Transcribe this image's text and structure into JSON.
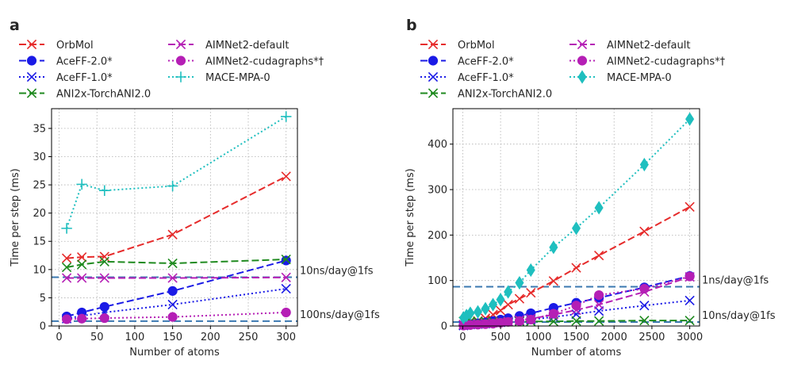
{
  "chart_data": [
    {
      "type": "line",
      "panel_label": "a",
      "title": "",
      "xlabel": "Number of atoms",
      "ylabel": "Time per step (ms)",
      "xlim": [
        -10,
        315
      ],
      "ylim": [
        0,
        38.5
      ],
      "xticks": [
        0,
        50,
        100,
        150,
        200,
        250,
        300
      ],
      "yticks": [
        0,
        5,
        10,
        15,
        20,
        25,
        30,
        35
      ],
      "xtick_labels": [
        "0",
        "50",
        "100",
        "150",
        "200",
        "250",
        "300"
      ],
      "ytick_labels": [
        "0",
        "5",
        "10",
        "15",
        "20",
        "25",
        "30",
        "35"
      ],
      "grid": true,
      "legend_position": "top",
      "series": [
        {
          "name": "OrbMol",
          "color": "#e62b2b",
          "linestyle": "dashed",
          "marker": "x",
          "x": [
            10,
            30,
            60,
            150,
            300
          ],
          "y": [
            12.0,
            12.2,
            12.3,
            16.2,
            26.5
          ]
        },
        {
          "name": "AceFF-2.0*",
          "color": "#1a1ae6",
          "linestyle": "dashed",
          "marker": "circle",
          "x": [
            10,
            30,
            60,
            150,
            300
          ],
          "y": [
            1.7,
            2.4,
            3.4,
            6.2,
            11.6
          ]
        },
        {
          "name": "AceFF-1.0*",
          "color": "#1a1ae6",
          "linestyle": "dotted",
          "marker": "x",
          "x": [
            10,
            30,
            60,
            150,
            300
          ],
          "y": [
            1.3,
            1.8,
            2.4,
            3.8,
            6.6
          ]
        },
        {
          "name": "ANI2x-TorchANI2.0",
          "color": "#1f8a1f",
          "linestyle": "dashed",
          "marker": "x",
          "x": [
            10,
            30,
            60,
            150,
            300
          ],
          "y": [
            10.4,
            10.9,
            11.4,
            11.1,
            11.8
          ]
        },
        {
          "name": "AIMNet2-default",
          "color": "#b51fb5",
          "linestyle": "dashed",
          "marker": "x",
          "x": [
            10,
            30,
            60,
            150,
            300
          ],
          "y": [
            8.5,
            8.5,
            8.5,
            8.5,
            8.6
          ]
        },
        {
          "name": "AIMNet2-cudagraphs*†",
          "color": "#b51fb5",
          "linestyle": "dotted",
          "marker": "circle",
          "x": [
            10,
            30,
            60,
            150,
            300
          ],
          "y": [
            1.2,
            1.3,
            1.4,
            1.6,
            2.4
          ]
        },
        {
          "name": "MACE-MPA-0",
          "color": "#1fbfbf",
          "linestyle": "dotted",
          "marker": "plus",
          "x": [
            10,
            30,
            60,
            150,
            300
          ],
          "y": [
            17.3,
            25.1,
            24.0,
            24.8,
            37.1
          ]
        }
      ],
      "reference_lines": [
        {
          "label": "10ns/day@1fs",
          "y": 8.64
        },
        {
          "label": "100ns/day@1fs",
          "y": 0.864
        }
      ]
    },
    {
      "type": "line",
      "panel_label": "b",
      "title": "",
      "xlabel": "Number of atoms",
      "ylabel": "Time per step (ms)",
      "xlim": [
        -130,
        3130
      ],
      "ylim": [
        0,
        478
      ],
      "xticks": [
        0,
        500,
        1000,
        1500,
        2000,
        2500,
        3000
      ],
      "yticks": [
        0,
        100,
        200,
        300,
        400
      ],
      "xtick_labels": [
        "0",
        "500",
        "1000",
        "1500",
        "2000",
        "2500",
        "3000"
      ],
      "ytick_labels": [
        "0",
        "100",
        "200",
        "300",
        "400"
      ],
      "grid": true,
      "legend_position": "top",
      "series": [
        {
          "name": "OrbMol",
          "color": "#e62b2b",
          "linestyle": "dashed",
          "marker": "x",
          "x": [
            10,
            50,
            100,
            200,
            300,
            400,
            500,
            600,
            750,
            900,
            1200,
            1500,
            1800,
            2400,
            3000
          ],
          "y": [
            3,
            5,
            7,
            11,
            17,
            25,
            34,
            47,
            60,
            73,
            99,
            128,
            155,
            208,
            262
          ]
        },
        {
          "name": "AceFF-2.0*",
          "color": "#1a1ae6",
          "linestyle": "dashed",
          "marker": "circle",
          "x": [
            10,
            50,
            100,
            200,
            300,
            400,
            500,
            600,
            750,
            900,
            1200,
            1500,
            1800,
            2400,
            3000
          ],
          "y": [
            2,
            3,
            4,
            6,
            8,
            11,
            14,
            17,
            22,
            28,
            40,
            51,
            62,
            85,
            110
          ]
        },
        {
          "name": "AceFF-1.0*",
          "color": "#1a1ae6",
          "linestyle": "dotted",
          "marker": "x",
          "x": [
            10,
            50,
            100,
            200,
            300,
            400,
            500,
            600,
            750,
            900,
            1200,
            1500,
            1800,
            2400,
            3000
          ],
          "y": [
            1,
            2,
            3,
            4,
            5,
            7,
            8,
            10,
            12,
            14,
            20,
            26,
            33,
            45,
            56
          ]
        },
        {
          "name": "ANI2x-TorchANI2.0",
          "color": "#1f8a1f",
          "linestyle": "dashed",
          "marker": "x",
          "x": [
            10,
            50,
            100,
            200,
            300,
            400,
            500,
            600,
            750,
            900,
            1200,
            1500,
            1800,
            2400,
            3000
          ],
          "y": [
            10,
            10,
            10,
            10,
            10,
            10,
            10,
            10,
            10,
            10,
            10,
            11,
            11,
            12,
            12
          ]
        },
        {
          "name": "AIMNet2-default",
          "color": "#b51fb5",
          "linestyle": "dashed",
          "marker": "x",
          "x": [
            10,
            50,
            100,
            200,
            300,
            400,
            500,
            600,
            750,
            900,
            1200,
            1500,
            1800,
            2400,
            3000
          ],
          "y": [
            3,
            3,
            4,
            5,
            6,
            7,
            9,
            10,
            13,
            16,
            25,
            35,
            47,
            75,
            108
          ]
        },
        {
          "name": "AIMNet2-cudagraphs*†",
          "color": "#b51fb5",
          "linestyle": "dotted",
          "marker": "circle",
          "x": [
            10,
            50,
            100,
            200,
            300,
            400,
            500,
            600,
            750,
            900,
            1200,
            1500,
            1800,
            2400,
            3000
          ],
          "y": [
            1,
            2,
            2,
            3,
            4,
            5,
            7,
            9,
            11,
            14,
            27,
            45,
            68,
            82,
            109
          ]
        },
        {
          "name": "MACE-MPA-0",
          "color": "#1fbfbf",
          "linestyle": "dotted",
          "marker": "diamond",
          "x": [
            10,
            50,
            100,
            200,
            300,
            400,
            500,
            600,
            750,
            900,
            1200,
            1500,
            1800,
            2400,
            3000
          ],
          "y": [
            18,
            23,
            28,
            31,
            38,
            47,
            58,
            75,
            95,
            123,
            173,
            215,
            260,
            355,
            455
          ]
        }
      ],
      "reference_lines": [
        {
          "label": "1ns/day@1fs",
          "y": 86.4
        },
        {
          "label": "10ns/day@1fs",
          "y": 8.64
        }
      ]
    }
  ]
}
